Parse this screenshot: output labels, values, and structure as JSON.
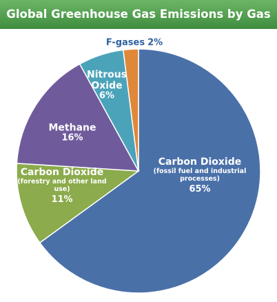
{
  "chart_data": {
    "type": "pie",
    "title": "Global Greenhouse Gas Emissions by Gas",
    "categories": [
      "Carbon Dioxide",
      "Carbon Dioxide",
      "Methane",
      "Nitrous Oxide",
      "F-gases"
    ],
    "category_notes": [
      "(fossil fuel and industrial processes)",
      "(forestry and other land use)",
      null,
      null,
      null
    ],
    "values": [
      65,
      11,
      16,
      6,
      2
    ],
    "value_labels": [
      "65%",
      "11%",
      "16%",
      "6%",
      "2%"
    ],
    "colors": [
      "#4a70a8",
      "#8bab4c",
      "#6f5b9b",
      "#4ba3b9",
      "#e0883a"
    ]
  }
}
